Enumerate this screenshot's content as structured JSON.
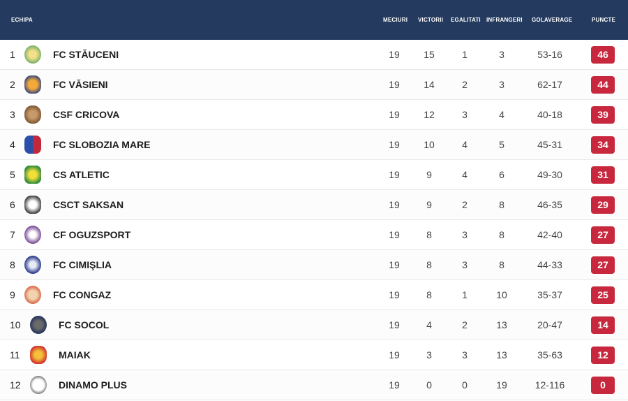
{
  "header": {
    "team": "ECHIPA",
    "played": "MECIURI",
    "wins": "VICTORII",
    "draws": "EGALITATI",
    "losses": "INFRANGERI",
    "goal_avg": "GOLAVERAGE",
    "points": "PUNCTE"
  },
  "accent_colors": {
    "header_bg": "#243a5e",
    "points_badge": "#c8283d"
  },
  "rows": [
    {
      "rank": "1",
      "team": "FC STĂUCENI",
      "logo": "stauceni-crest-icon",
      "played": "19",
      "wins": "15",
      "draws": "1",
      "losses": "3",
      "goals": "53-16",
      "points": "46"
    },
    {
      "rank": "2",
      "team": "FC VĂSIENI",
      "logo": "vasieni-crest-icon",
      "played": "19",
      "wins": "14",
      "draws": "2",
      "losses": "3",
      "goals": "62-17",
      "points": "44"
    },
    {
      "rank": "3",
      "team": "CSF CRICOVA",
      "logo": "cricova-crest-icon",
      "played": "19",
      "wins": "12",
      "draws": "3",
      "losses": "4",
      "goals": "40-18",
      "points": "39"
    },
    {
      "rank": "4",
      "team": "FC SLOBOZIA MARE",
      "logo": "slobozia-mare-crest-icon",
      "played": "19",
      "wins": "10",
      "draws": "4",
      "losses": "5",
      "goals": "45-31",
      "points": "34"
    },
    {
      "rank": "5",
      "team": "CS ATLETIC",
      "logo": "atletic-crest-icon",
      "played": "19",
      "wins": "9",
      "draws": "4",
      "losses": "6",
      "goals": "49-30",
      "points": "31"
    },
    {
      "rank": "6",
      "team": "CSCT SAKSAN",
      "logo": "saksan-crest-icon",
      "played": "19",
      "wins": "9",
      "draws": "2",
      "losses": "8",
      "goals": "46-35",
      "points": "29"
    },
    {
      "rank": "7",
      "team": "CF OGUZSPORT",
      "logo": "oguzsport-crest-icon",
      "played": "19",
      "wins": "8",
      "draws": "3",
      "losses": "8",
      "goals": "42-40",
      "points": "27"
    },
    {
      "rank": "8",
      "team": "FC CIMIŞLIA",
      "logo": "cimislia-crest-icon",
      "played": "19",
      "wins": "8",
      "draws": "3",
      "losses": "8",
      "goals": "44-33",
      "points": "27"
    },
    {
      "rank": "9",
      "team": "FC CONGAZ",
      "logo": "congaz-crest-icon",
      "played": "19",
      "wins": "8",
      "draws": "1",
      "losses": "10",
      "goals": "35-37",
      "points": "25"
    },
    {
      "rank": "10",
      "team": "FC SOCOL",
      "logo": "socol-crest-icon",
      "played": "19",
      "wins": "4",
      "draws": "2",
      "losses": "13",
      "goals": "20-47",
      "points": "14"
    },
    {
      "rank": "11",
      "team": "MAIAK",
      "logo": "maiak-crest-icon",
      "played": "19",
      "wins": "3",
      "draws": "3",
      "losses": "13",
      "goals": "35-63",
      "points": "12"
    },
    {
      "rank": "12",
      "team": "DINAMO PLUS",
      "logo": "dinamo-plus-crest-icon",
      "played": "19",
      "wins": "0",
      "draws": "0",
      "losses": "19",
      "goals": "12-116",
      "points": "0"
    }
  ]
}
